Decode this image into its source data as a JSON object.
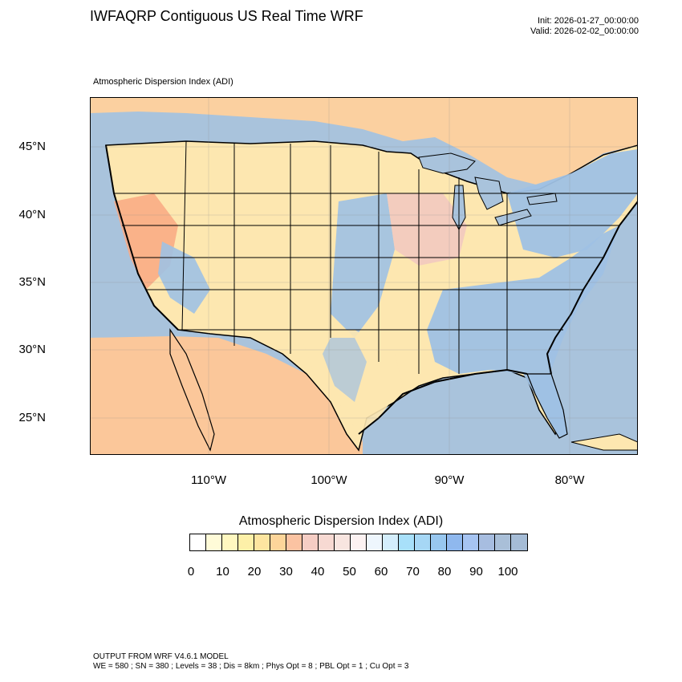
{
  "header": {
    "title": "IWFAQRP Contiguous US Real Time WRF",
    "init": "Init: 2026-01-27_00:00:00",
    "valid": "Valid: 2026-02-02_00:00:00"
  },
  "map": {
    "subtitle": "Atmospheric Dispersion Index   (ADI)",
    "lat_labels": [
      "45°N",
      "40°N",
      "35°N",
      "30°N",
      "25°N"
    ],
    "lon_labels": [
      "110°W",
      "100°W",
      "90°W",
      "80°W"
    ],
    "colors": {
      "ocean": "#a9c3dc",
      "land_low": "#fde7b0",
      "land_warm": "#fbc79a",
      "land_orange": "#f9a882",
      "land_blue": "#9fc1e4",
      "land_pink": "#f2c9c0",
      "lake": "#a9c3dc",
      "border": "#000000"
    }
  },
  "legend": {
    "title": "Atmospheric Dispersion Index  (ADI)",
    "ticks": [
      "0",
      "10",
      "20",
      "30",
      "40",
      "50",
      "60",
      "70",
      "80",
      "90",
      "100"
    ],
    "colors": [
      "#ffffff",
      "#fffbd8",
      "#fff8c0",
      "#fdf0a8",
      "#fde5a0",
      "#fdd59a",
      "#fbc3a2",
      "#f5cdc4",
      "#f7d9d2",
      "#f8e5e0",
      "#fcf2f2",
      "#eef6fd",
      "#d4eefc",
      "#a8e0fa",
      "#a6d7f5",
      "#98c7ef",
      "#8fb8ee",
      "#a6c4f2",
      "#a7bde0",
      "#a9bfd8",
      "#a5bcd6"
    ]
  },
  "footer": {
    "line1": "OUTPUT FROM WRF V4.6.1 MODEL",
    "line2": "WE = 580 ; SN = 380 ; Levels = 38 ; Dis = 8km ; Phys Opt = 8 ; PBL Opt = 1 ; Cu Opt = 3"
  }
}
